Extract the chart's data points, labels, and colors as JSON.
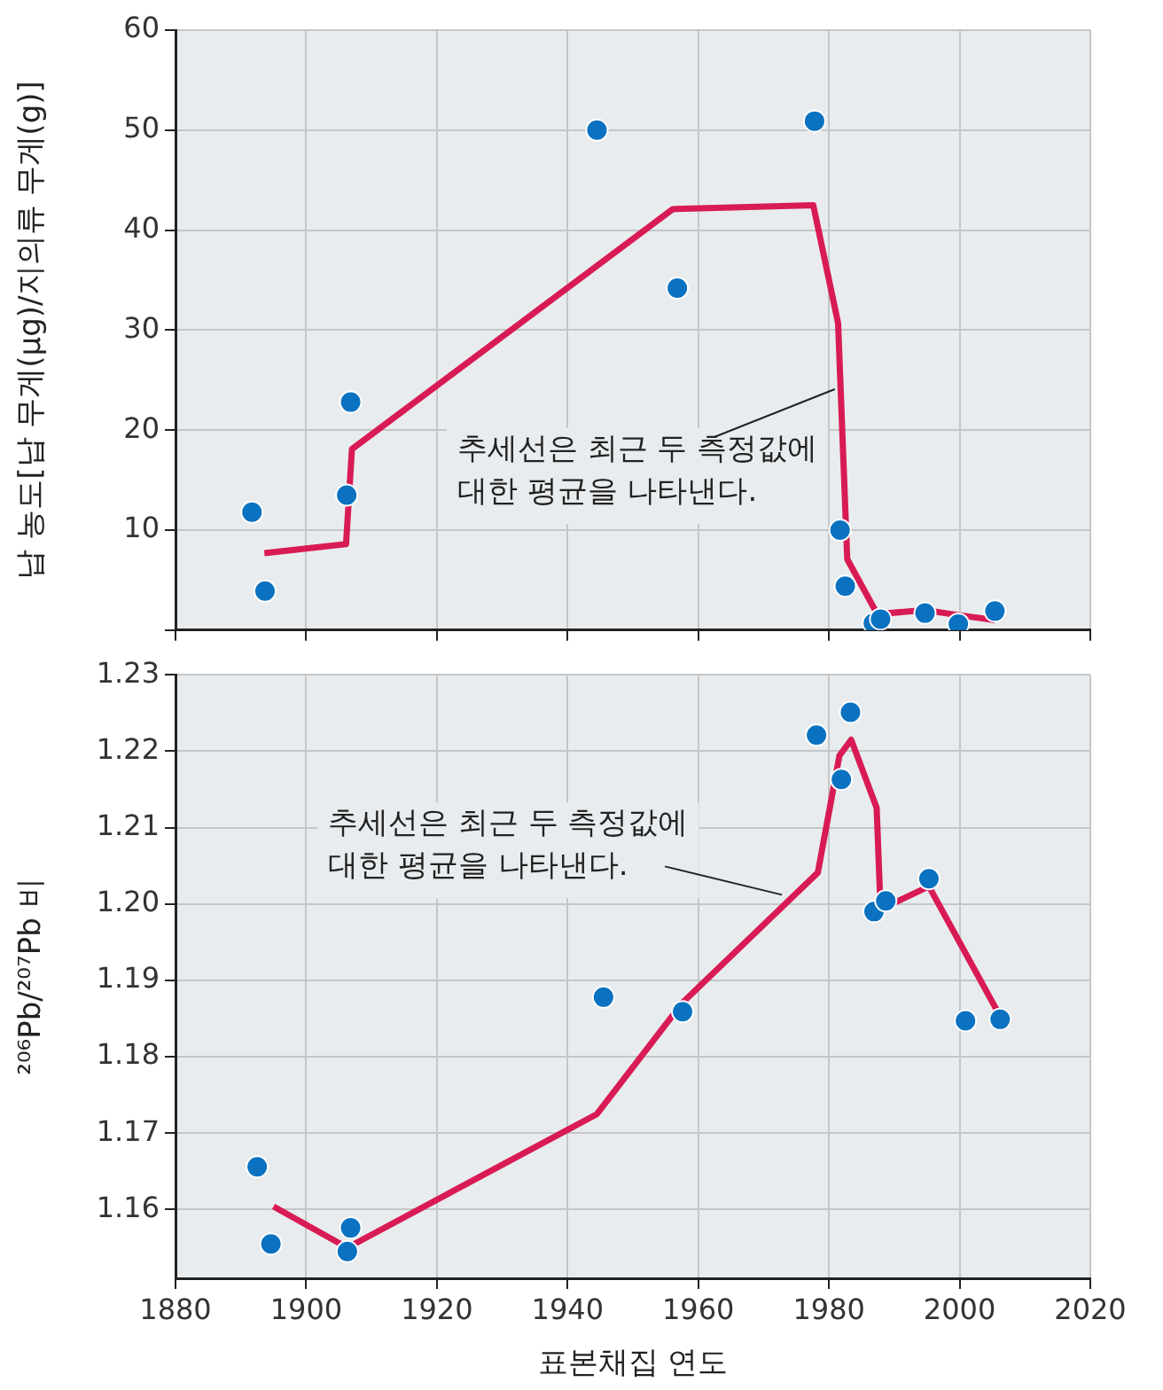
{
  "chart_data": [
    {
      "type": "scatter",
      "ylabel": "납 농도[납 무게(μg)/지의류 무게(g)]",
      "xlim": [
        1880,
        2020
      ],
      "xticks": [
        1880,
        1900,
        1920,
        1940,
        1960,
        1980,
        2000,
        2020
      ],
      "ylim": [
        0,
        60
      ],
      "yticks": [
        {
          "value": 0,
          "label": null
        },
        10,
        20,
        30,
        40,
        50,
        60
      ],
      "tick_labels": "y",
      "grid": true,
      "legend": false,
      "series": [
        {
          "marker": "circle",
          "color": "#0a72c0",
          "x": [
            1891.7,
            1893.7,
            1906.2,
            1906.8,
            1944.5,
            1956.8,
            1977.8,
            1981.7,
            1982.5,
            1986.8,
            1987.9,
            1994.7,
            1999.8,
            2005.4
          ],
          "values": [
            11.8,
            3.9,
            13.5,
            22.8,
            50.0,
            34.2,
            50.9,
            10.0,
            4.4,
            0.7,
            1.1,
            1.7,
            0.6,
            1.9
          ]
        },
        {
          "type": "line",
          "marker": "none",
          "color": "#d81b55",
          "line_style": "solid",
          "x": [
            1893.6,
            1906.1,
            1907.0,
            1956.1,
            1977.6,
            1981.4,
            1982.8,
            1987.4,
            1994.7,
            1999.8,
            2005.4
          ],
          "values": [
            7.7,
            8.6,
            18.1,
            42.1,
            42.5,
            30.7,
            7.1,
            1.6,
            2.0,
            1.5,
            1.0
          ]
        }
      ],
      "annotations": [
        {
          "text": "추세선은 최근 두 측정값에\n대한 평균을 나타낸다.",
          "x": 1980.9,
          "y": 24.1
        }
      ]
    },
    {
      "type": "scatter",
      "xlabel": "표본채집 연도",
      "ylabel": "²⁰⁶Pb/²⁰⁷Pb 비",
      "xlim": [
        1880,
        2020
      ],
      "xticks": [
        1880,
        1900,
        1920,
        1940,
        1960,
        1980,
        2000,
        2020
      ],
      "ylim": [
        1.151,
        1.23
      ],
      "yticks": [
        1.16,
        1.17,
        1.18,
        1.19,
        {
          "value": 1.2,
          "label": "1.20"
        },
        1.21,
        1.22,
        1.23
      ],
      "grid": true,
      "legend": false,
      "series": [
        {
          "marker": "circle",
          "color": "#0a72c0",
          "x": [
            1892.5,
            1894.6,
            1906.8,
            1906.3,
            1945.5,
            1957.6,
            1978.1,
            1983.3,
            1981.9,
            1986.9,
            1988.7,
            1995.3,
            2000.9,
            2006.2
          ],
          "values": [
            1.1656,
            1.1555,
            1.1576,
            1.1545,
            1.1878,
            1.1859,
            1.2221,
            1.2251,
            1.2163,
            1.199,
            1.2004,
            1.2033,
            1.1847,
            1.1849
          ]
        },
        {
          "type": "line",
          "marker": "none",
          "color": "#d81b55",
          "line_style": "solid",
          "x": [
            1895.0,
            1906.3,
            1944.5,
            1957.6,
            1978.3,
            1981.6,
            1983.4,
            1987.3,
            1987.9,
            1995.3,
            2006.2
          ],
          "values": [
            1.1604,
            1.155,
            1.1725,
            1.1871,
            1.2041,
            1.2194,
            1.2215,
            1.2126,
            1.1993,
            1.2023,
            1.1853
          ]
        }
      ],
      "annotations": [
        {
          "text": "추세선은 최근 두 측정값에\n대한 평균을 나타낸다.",
          "x": 1972.8,
          "y": 1.2012
        }
      ]
    }
  ]
}
